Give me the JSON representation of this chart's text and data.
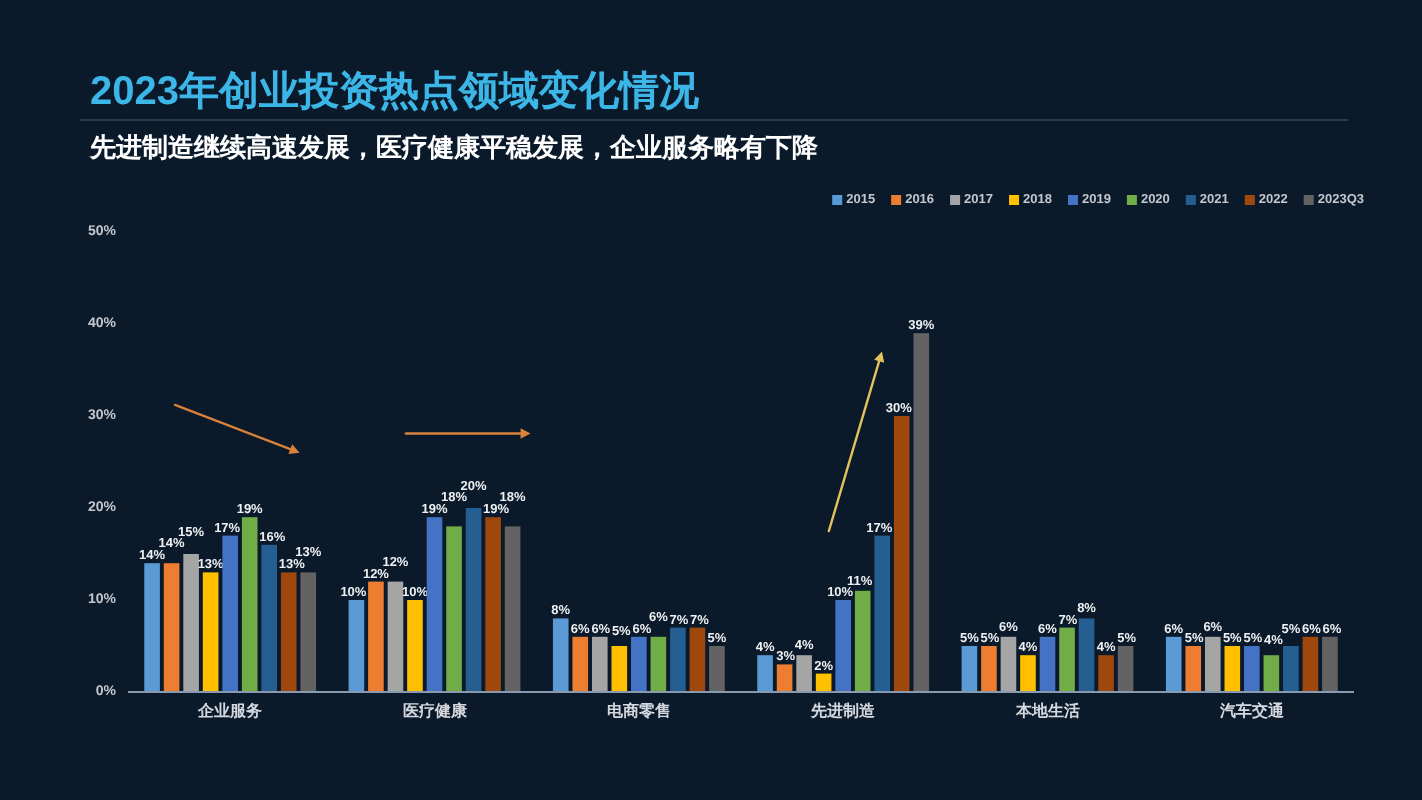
{
  "chart_data": {
    "type": "bar",
    "title": "2023年创业投资热点领域变化情况",
    "subtitle": "先进制造继续高速发展，医疗健康平稳发展，企业服务略有下降",
    "categories": [
      "企业服务",
      "医疗健康",
      "电商零售",
      "先进制造",
      "本地生活",
      "汽车交通"
    ],
    "series": [
      {
        "name": "2015",
        "color": "#5b9bd5",
        "values": [
          14,
          10,
          8,
          4,
          5,
          6
        ],
        "value_labels": [
          "14%",
          "10%",
          "8%",
          "4%",
          "5%",
          "6%"
        ]
      },
      {
        "name": "2016",
        "color": "#ed7d31",
        "values": [
          14,
          12,
          6,
          3,
          5,
          5
        ],
        "value_labels": [
          "14%",
          "12%",
          "6%",
          "3%",
          "5%",
          "5%"
        ]
      },
      {
        "name": "2017",
        "color": "#a5a5a5",
        "values": [
          15,
          12,
          6,
          4,
          6,
          6
        ],
        "value_labels": [
          "15%",
          "12%",
          "6%",
          "4%",
          "6%",
          "6%"
        ]
      },
      {
        "name": "2018",
        "color": "#ffc000",
        "values": [
          13,
          10,
          5,
          2,
          4,
          5
        ],
        "value_labels": [
          "13%",
          "10%",
          "5%",
          "2%",
          "4%",
          "5%"
        ]
      },
      {
        "name": "2019",
        "color": "#4472c4",
        "values": [
          17,
          19,
          6,
          10,
          6,
          5
        ],
        "value_labels": [
          "17%",
          "19%",
          "6%",
          "10%",
          "6%",
          "5%"
        ]
      },
      {
        "name": "2020",
        "color": "#70ad47",
        "values": [
          19,
          18,
          6,
          11,
          7,
          4
        ],
        "value_labels": [
          "19%",
          "18%",
          "6%",
          "11%",
          "7%",
          "4%"
        ]
      },
      {
        "name": "2021",
        "color": "#255e91",
        "values": [
          16,
          20,
          7,
          17,
          8,
          5
        ],
        "value_labels": [
          "16%",
          "20%",
          "7%",
          "17%",
          "8%",
          "5%"
        ]
      },
      {
        "name": "2022",
        "color": "#9e480e",
        "values": [
          13,
          19,
          7,
          30,
          4,
          6
        ],
        "value_labels": [
          "13%",
          "19%",
          "7%",
          "30%",
          "4%",
          "6%"
        ]
      },
      {
        "name": "2023Q3",
        "color": "#636363",
        "values": [
          13,
          18,
          5,
          39,
          5,
          6
        ],
        "value_labels": [
          "13%",
          "18%",
          "5%",
          "39%",
          "5%",
          "6%"
        ]
      }
    ],
    "ylim": [
      0,
      50
    ],
    "yticks": [
      {
        "value": 0,
        "label": "0%"
      },
      {
        "value": 10,
        "label": "10%"
      },
      {
        "value": 20,
        "label": "20%"
      },
      {
        "value": 30,
        "label": "30%"
      },
      {
        "value": 40,
        "label": "40%"
      },
      {
        "value": 50,
        "label": "50%"
      }
    ],
    "legend": "top right"
  }
}
